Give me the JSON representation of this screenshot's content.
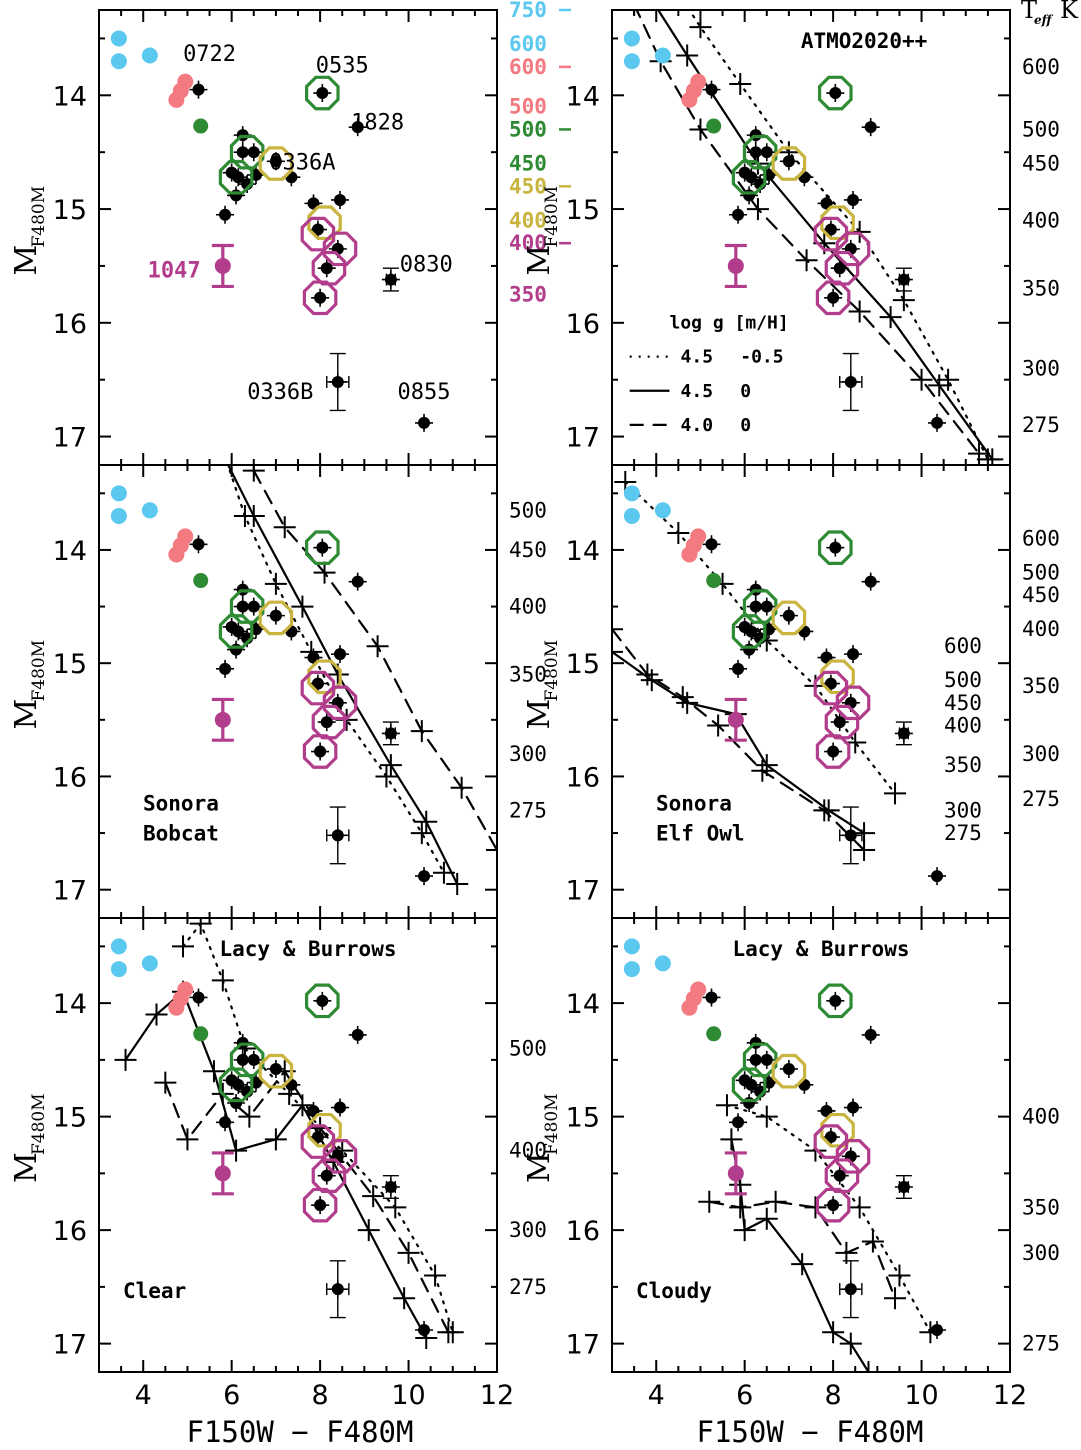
{
  "figure": {
    "x_axis_label": "F150W − F480M",
    "y_axis_label_main": "M",
    "y_axis_label_sub": "F480M",
    "teff_key_label": "T",
    "teff_key_sub": "eff",
    "teff_key_unit": "K"
  },
  "colors": {
    "black": "#000000",
    "cyan": "#5bc8ef",
    "salmon": "#f27a80",
    "green": "#2e8b34",
    "olive": "#c9b440",
    "magenta": "#b23d8c"
  },
  "chart_data": [
    {
      "type": "scatter",
      "panel": "top-left",
      "xlim": [
        3,
        12
      ],
      "ylim": [
        13.25,
        17.25
      ],
      "x_ticks": [
        4,
        6,
        8,
        10,
        12
      ],
      "y_ticks": [
        14,
        15,
        16,
        17
      ],
      "show_x_tick_labels": false,
      "show_y_tick_labels": true,
      "observed": true,
      "observed_magenta_label": "1047",
      "object_labels": [
        {
          "text": "0722",
          "x": 5.5,
          "y": 13.7
        },
        {
          "text": "0535",
          "x": 8.5,
          "y": 13.8
        },
        {
          "text": "1828",
          "x": 9.3,
          "y": 14.3
        },
        {
          "text": "0336A",
          "x": 7.6,
          "y": 14.65
        },
        {
          "text": "0830",
          "x": 10.4,
          "y": 15.55
        },
        {
          "text": "0336B",
          "x": 7.1,
          "y": 16.67
        },
        {
          "text": "0855",
          "x": 10.35,
          "y": 16.67
        }
      ],
      "models": [],
      "teff_labels": [
        {
          "text": "750",
          "y": 13.25,
          "color": "#5bc8ef",
          "dash": true
        },
        {
          "text": "600",
          "y": 13.55,
          "color": "#5bc8ef",
          "dash": false
        },
        {
          "text": "600",
          "y": 13.75,
          "color": "#f27a80",
          "dash": true
        },
        {
          "text": "500",
          "y": 14.1,
          "color": "#f27a80",
          "dash": false
        },
        {
          "text": "500",
          "y": 14.3,
          "color": "#2e8b34",
          "dash": true
        },
        {
          "text": "450",
          "y": 14.6,
          "color": "#2e8b34",
          "dash": false
        },
        {
          "text": "450",
          "y": 14.8,
          "color": "#c9b440",
          "dash": true
        },
        {
          "text": "400",
          "y": 15.1,
          "color": "#c9b440",
          "dash": false
        },
        {
          "text": "400",
          "y": 15.3,
          "color": "#b23d8c",
          "dash": true
        },
        {
          "text": "350",
          "y": 15.75,
          "color": "#b23d8c",
          "dash": false
        }
      ]
    },
    {
      "type": "line",
      "panel": "top-right",
      "xlim": [
        3,
        12
      ],
      "ylim": [
        13.25,
        17.25
      ],
      "x_ticks": [
        4,
        6,
        8,
        10,
        12
      ],
      "y_ticks": [
        14,
        15,
        16,
        17
      ],
      "show_x_tick_labels": false,
      "show_y_tick_labels": true,
      "observed": true,
      "model_title": "ATMO2020++",
      "legend_header": "log g   [m/H]",
      "legend": [
        {
          "dash": "dot",
          "logg": "4.5",
          "mh": "-0.5"
        },
        {
          "dash": "solid",
          "logg": "4.5",
          "mh": "0"
        },
        {
          "dash": "dash",
          "logg": "4.0",
          "mh": "0"
        }
      ],
      "models": [
        {
          "dash": "dot",
          "x": [
            4.5,
            5.0,
            5.9,
            7.0,
            8.6,
            9.6,
            10.6,
            11.5
          ],
          "y": [
            13.1,
            13.4,
            13.9,
            14.5,
            15.2,
            15.8,
            16.5,
            17.2
          ],
          "crosses": true
        },
        {
          "dash": "solid",
          "x": [
            3.8,
            4.7,
            6.3,
            7.8,
            9.3,
            10.4,
            11.6
          ],
          "y": [
            13.1,
            13.65,
            14.6,
            15.3,
            15.95,
            16.55,
            17.2
          ],
          "crosses": true
        },
        {
          "dash": "dash",
          "x": [
            3.5,
            4.1,
            5.0,
            6.3,
            7.4,
            8.6,
            10.0,
            11.3
          ],
          "y": [
            13.2,
            13.7,
            14.3,
            15.0,
            15.45,
            15.9,
            16.5,
            17.15
          ],
          "crosses": true
        }
      ],
      "teff_labels": [
        {
          "text": "600",
          "y": 13.75
        },
        {
          "text": "500",
          "y": 14.3
        },
        {
          "text": "450",
          "y": 14.6
        },
        {
          "text": "400",
          "y": 15.1
        },
        {
          "text": "350",
          "y": 15.7
        },
        {
          "text": "300",
          "y": 16.4
        },
        {
          "text": "275",
          "y": 16.9
        }
      ]
    },
    {
      "type": "line",
      "panel": "middle-left",
      "xlim": [
        3,
        12
      ],
      "ylim": [
        13.25,
        17.25
      ],
      "x_ticks": [
        4,
        6,
        8,
        10,
        12
      ],
      "y_ticks": [
        14,
        15,
        16,
        17
      ],
      "show_x_tick_labels": false,
      "show_y_tick_labels": true,
      "observed": true,
      "model_title_lines": [
        "Sonora",
        "Bobcat"
      ],
      "models": [
        {
          "dash": "dot",
          "x": [
            5.7,
            6.3,
            7.0,
            7.8,
            8.6,
            9.5,
            10.3,
            10.8
          ],
          "y": [
            13.0,
            13.7,
            14.3,
            14.9,
            15.5,
            16.0,
            16.5,
            16.85
          ],
          "crosses": true
        },
        {
          "dash": "solid",
          "x": [
            5.6,
            6.5,
            7.6,
            8.4,
            9.6,
            10.4,
            11.1
          ],
          "y": [
            13.0,
            13.7,
            14.5,
            15.1,
            15.9,
            16.4,
            16.95
          ],
          "crosses": true
        },
        {
          "dash": "dash",
          "x": [
            6.5,
            7.2,
            8.1,
            9.3,
            10.3,
            11.2,
            12.0
          ],
          "y": [
            13.3,
            13.8,
            14.2,
            14.85,
            15.6,
            16.1,
            16.65
          ],
          "crosses": true
        }
      ],
      "teff_labels": [
        {
          "text": "500",
          "y": 13.65
        },
        {
          "text": "450",
          "y": 14.0
        },
        {
          "text": "400",
          "y": 14.5
        },
        {
          "text": "350",
          "y": 15.1
        },
        {
          "text": "300",
          "y": 15.8
        },
        {
          "text": "275",
          "y": 16.3
        }
      ]
    },
    {
      "type": "line",
      "panel": "middle-right",
      "xlim": [
        3,
        12
      ],
      "ylim": [
        13.25,
        17.25
      ],
      "x_ticks": [
        4,
        6,
        8,
        10,
        12
      ],
      "y_ticks": [
        14,
        15,
        16,
        17
      ],
      "show_x_tick_labels": false,
      "show_y_tick_labels": true,
      "observed": true,
      "model_title_lines": [
        "Sonora",
        "Elf Owl"
      ],
      "models": [
        {
          "dash": "dot",
          "x": [
            3.3,
            4.5,
            5.5,
            6.5,
            7.6,
            8.5,
            9.4
          ],
          "y": [
            13.4,
            13.85,
            14.3,
            14.8,
            15.2,
            15.7,
            16.15
          ],
          "crosses": true
        },
        {
          "dash": "solid",
          "x": [
            3.0,
            3.9,
            4.7,
            5.8,
            6.5,
            7.9,
            8.7
          ],
          "y": [
            14.9,
            15.15,
            15.35,
            15.45,
            15.9,
            16.3,
            16.5
          ],
          "crosses": true
        },
        {
          "dash": "dash",
          "x": [
            3.0,
            3.8,
            4.6,
            5.4,
            6.4,
            7.8,
            8.7
          ],
          "y": [
            14.7,
            15.1,
            15.3,
            15.55,
            15.95,
            16.3,
            16.65
          ],
          "crosses": true
        }
      ],
      "teff_labels_inner": [
        {
          "text": "600",
          "y": 14.85
        },
        {
          "text": "500",
          "y": 15.15
        },
        {
          "text": "450",
          "y": 15.35
        },
        {
          "text": "400",
          "y": 15.55
        },
        {
          "text": "350",
          "y": 15.9
        },
        {
          "text": "300",
          "y": 16.3
        },
        {
          "text": "275",
          "y": 16.5
        }
      ],
      "teff_labels": [
        {
          "text": "600",
          "y": 13.9
        },
        {
          "text": "500",
          "y": 14.2
        },
        {
          "text": "450",
          "y": 14.4
        },
        {
          "text": "400",
          "y": 14.7
        },
        {
          "text": "350",
          "y": 15.2
        },
        {
          "text": "300",
          "y": 15.8
        },
        {
          "text": "275",
          "y": 16.2
        }
      ]
    },
    {
      "type": "line",
      "panel": "bottom-left",
      "xlim": [
        3,
        12
      ],
      "ylim": [
        13.25,
        17.25
      ],
      "x_ticks": [
        4,
        6,
        8,
        10,
        12
      ],
      "y_ticks": [
        14,
        15,
        16,
        17
      ],
      "x_tick_labels": [
        "4",
        "6",
        "8",
        "10",
        "12"
      ],
      "show_x_tick_labels": true,
      "show_y_tick_labels": true,
      "observed": true,
      "model_title": "Lacy & Burrows",
      "model_title_lines": [
        "Clear"
      ],
      "models": [
        {
          "dash": "dot",
          "x": [
            4.9,
            5.3,
            5.8,
            6.3,
            7.3,
            8.5,
            9.7,
            10.6,
            11.0
          ],
          "y": [
            13.5,
            13.3,
            13.8,
            14.4,
            14.8,
            15.3,
            15.8,
            16.4,
            16.9
          ],
          "crosses": true
        },
        {
          "dash": "solid",
          "x": [
            3.6,
            4.3,
            4.9,
            5.6,
            6.1,
            7.0,
            7.6,
            8.3,
            9.1,
            9.9,
            10.4
          ],
          "y": [
            14.5,
            14.1,
            13.9,
            14.6,
            15.3,
            15.2,
            14.9,
            15.4,
            16.0,
            16.6,
            16.95
          ],
          "crosses": true
        },
        {
          "dash": "dash",
          "x": [
            4.5,
            5.0,
            5.8,
            6.4,
            7.2,
            8.0,
            9.2,
            10.0,
            10.9
          ],
          "y": [
            14.7,
            15.2,
            14.8,
            15.0,
            14.6,
            15.1,
            15.7,
            16.2,
            16.9
          ],
          "crosses": true
        }
      ],
      "teff_labels": [
        {
          "text": "500",
          "y": 14.4
        },
        {
          "text": "400",
          "y": 15.3
        },
        {
          "text": "300",
          "y": 16.0
        },
        {
          "text": "275",
          "y": 16.5
        }
      ]
    },
    {
      "type": "line",
      "panel": "bottom-right",
      "xlim": [
        3,
        12
      ],
      "ylim": [
        13.25,
        17.25
      ],
      "x_ticks": [
        4,
        6,
        8,
        10,
        12
      ],
      "y_ticks": [
        14,
        15,
        16,
        17
      ],
      "x_tick_labels": [
        "4",
        "6",
        "8",
        "10",
        "12"
      ],
      "show_x_tick_labels": true,
      "show_y_tick_labels": true,
      "observed": true,
      "model_title": "Lacy & Burrows",
      "model_title_lines": [
        "Cloudy"
      ],
      "models": [
        {
          "dash": "dot",
          "x": [
            5.6,
            6.5,
            7.6,
            8.6,
            9.5,
            10.2
          ],
          "y": [
            14.9,
            15.0,
            15.3,
            15.8,
            16.4,
            16.9
          ],
          "crosses": true
        },
        {
          "dash": "solid",
          "x": [
            5.7,
            5.9,
            6.0,
            6.5,
            7.3,
            8.0,
            8.4,
            8.8
          ],
          "y": [
            15.2,
            15.6,
            16.0,
            15.9,
            16.3,
            16.9,
            17.0,
            17.25
          ],
          "crosses": true
        },
        {
          "dash": "dash",
          "x": [
            5.2,
            5.9,
            6.7,
            7.6,
            8.3,
            8.9,
            9.4
          ],
          "y": [
            15.75,
            15.8,
            15.75,
            15.8,
            16.2,
            16.1,
            16.6
          ],
          "crosses": true
        }
      ],
      "teff_labels": [
        {
          "text": "400",
          "y": 15.0
        },
        {
          "text": "350",
          "y": 15.8
        },
        {
          "text": "300",
          "y": 16.2
        },
        {
          "text": "275",
          "y": 17.0
        }
      ]
    }
  ],
  "observed_points": {
    "cyan": [
      {
        "x": 3.45,
        "y": 13.5
      },
      {
        "x": 3.45,
        "y": 13.7
      },
      {
        "x": 4.15,
        "y": 13.65
      }
    ],
    "salmon": [
      {
        "x": 4.95,
        "y": 13.88
      },
      {
        "x": 4.85,
        "y": 13.96
      },
      {
        "x": 4.75,
        "y": 14.04
      }
    ],
    "green_filled": [
      {
        "x": 5.3,
        "y": 14.27
      }
    ],
    "black": [
      {
        "x": 5.25,
        "y": 13.95
      },
      {
        "x": 6.25,
        "y": 14.35
      },
      {
        "x": 6.25,
        "y": 14.5
      },
      {
        "x": 6.5,
        "y": 14.5
      },
      {
        "x": 6.0,
        "y": 14.68
      },
      {
        "x": 6.15,
        "y": 14.72
      },
      {
        "x": 6.55,
        "y": 14.7
      },
      {
        "x": 6.35,
        "y": 14.78
      },
      {
        "x": 6.1,
        "y": 14.88
      },
      {
        "x": 5.85,
        "y": 15.05
      },
      {
        "x": 7.0,
        "y": 14.58
      },
      {
        "x": 7.35,
        "y": 14.72
      },
      {
        "x": 8.05,
        "y": 13.98
      },
      {
        "x": 8.85,
        "y": 14.28
      },
      {
        "x": 7.85,
        "y": 14.95
      },
      {
        "x": 8.45,
        "y": 14.92
      },
      {
        "x": 7.95,
        "y": 15.18
      },
      {
        "x": 8.4,
        "y": 15.35
      },
      {
        "x": 8.15,
        "y": 15.52
      },
      {
        "x": 8.0,
        "y": 15.78
      },
      {
        "x": 9.6,
        "y": 15.62
      },
      {
        "x": 8.4,
        "y": 16.52
      },
      {
        "x": 10.35,
        "y": 16.88
      }
    ],
    "green_rings": [
      {
        "x": 8.05,
        "y": 13.98
      },
      {
        "x": 6.35,
        "y": 14.5
      },
      {
        "x": 6.1,
        "y": 14.72
      }
    ],
    "olive_rings": [
      {
        "x": 7.0,
        "y": 14.6
      },
      {
        "x": 8.1,
        "y": 15.12
      }
    ],
    "magenta_rings": [
      {
        "x": 7.95,
        "y": 15.22
      },
      {
        "x": 8.45,
        "y": 15.35
      },
      {
        "x": 8.2,
        "y": 15.52
      },
      {
        "x": 8.0,
        "y": 15.78
      }
    ],
    "magenta_point": {
      "x": 5.8,
      "y": 15.5
    }
  }
}
